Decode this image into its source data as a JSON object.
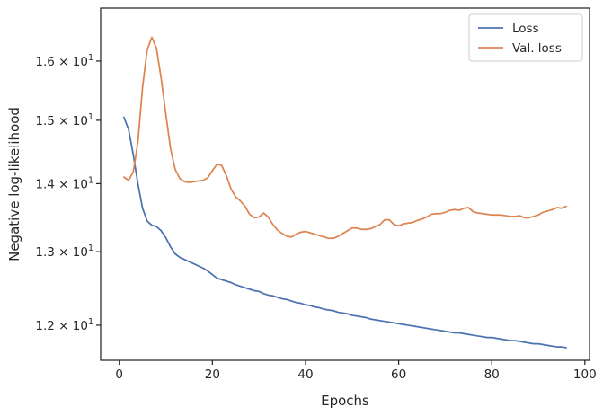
{
  "chart_data": {
    "type": "line",
    "xlabel": "Epochs",
    "ylabel": "Negative log-likelihood",
    "xlim": [
      -4,
      101
    ],
    "ylim": [
      11.55,
      16.95
    ],
    "yscale": "log",
    "grid": false,
    "legend_position": "top-right",
    "x_ticks": [
      0,
      20,
      40,
      60,
      80,
      100
    ],
    "x_tick_labels": [
      "0",
      "20",
      "40",
      "60",
      "80",
      "100"
    ],
    "y_ticks": [
      12,
      13,
      14,
      15,
      16
    ],
    "y_tick_labels": [
      {
        "mant": "1.2",
        "exp": "1"
      },
      {
        "mant": "1.3",
        "exp": "1"
      },
      {
        "mant": "1.4",
        "exp": "1"
      },
      {
        "mant": "1.5",
        "exp": "1"
      },
      {
        "mant": "1.6",
        "exp": "1"
      }
    ],
    "x_tick_mult": "10",
    "series": [
      {
        "name": "Loss",
        "color": "#4c72b0",
        "x": [
          1,
          2,
          3,
          4,
          5,
          6,
          7,
          8,
          9,
          10,
          11,
          12,
          13,
          14,
          15,
          16,
          17,
          18,
          19,
          20,
          21,
          22,
          23,
          24,
          25,
          26,
          27,
          28,
          29,
          30,
          31,
          32,
          33,
          34,
          35,
          36,
          37,
          38,
          39,
          40,
          41,
          42,
          43,
          44,
          45,
          46,
          47,
          48,
          49,
          50,
          51,
          52,
          53,
          54,
          55,
          56,
          57,
          58,
          59,
          60,
          61,
          62,
          63,
          64,
          65,
          66,
          67,
          68,
          69,
          70,
          71,
          72,
          73,
          74,
          75,
          76,
          77,
          78,
          79,
          80,
          81,
          82,
          83,
          84,
          85,
          86,
          87,
          88,
          89,
          90,
          91,
          92,
          93,
          94,
          95,
          96
        ],
        "values": [
          15.05,
          14.85,
          14.45,
          14.0,
          13.63,
          13.44,
          13.38,
          13.36,
          13.3,
          13.2,
          13.07,
          12.97,
          12.92,
          12.89,
          12.86,
          12.83,
          12.8,
          12.77,
          12.73,
          12.68,
          12.63,
          12.61,
          12.59,
          12.57,
          12.54,
          12.52,
          12.5,
          12.48,
          12.46,
          12.45,
          12.42,
          12.4,
          12.39,
          12.37,
          12.35,
          12.34,
          12.32,
          12.3,
          12.29,
          12.27,
          12.26,
          12.24,
          12.23,
          12.21,
          12.2,
          12.19,
          12.17,
          12.16,
          12.15,
          12.13,
          12.12,
          12.11,
          12.1,
          12.08,
          12.07,
          12.06,
          12.05,
          12.04,
          12.03,
          12.02,
          12.01,
          12.0,
          11.99,
          11.98,
          11.97,
          11.96,
          11.95,
          11.94,
          11.93,
          11.92,
          11.91,
          11.9,
          11.9,
          11.89,
          11.88,
          11.87,
          11.86,
          11.85,
          11.84,
          11.84,
          11.83,
          11.82,
          11.81,
          11.8,
          11.8,
          11.79,
          11.78,
          11.77,
          11.76,
          11.76,
          11.75,
          11.74,
          11.73,
          11.72,
          11.72,
          11.71
        ]
      },
      {
        "name": "Val. loss",
        "color": "#dd8452",
        "x": [
          1,
          2,
          3,
          4,
          5,
          6,
          7,
          8,
          9,
          10,
          11,
          12,
          13,
          14,
          15,
          16,
          17,
          18,
          19,
          20,
          21,
          22,
          23,
          24,
          25,
          26,
          27,
          28,
          29,
          30,
          31,
          32,
          33,
          34,
          35,
          36,
          37,
          38,
          39,
          40,
          41,
          42,
          43,
          44,
          45,
          46,
          47,
          48,
          49,
          50,
          51,
          52,
          53,
          54,
          55,
          56,
          57,
          58,
          59,
          60,
          61,
          62,
          63,
          64,
          65,
          66,
          67,
          68,
          69,
          70,
          71,
          72,
          73,
          74,
          75,
          76,
          77,
          78,
          79,
          80,
          81,
          82,
          83,
          84,
          85,
          86,
          87,
          88,
          89,
          90,
          91,
          92,
          93,
          94,
          95,
          96
        ],
        "values": [
          14.1,
          14.05,
          14.18,
          14.65,
          15.55,
          16.2,
          16.42,
          16.22,
          15.7,
          15.1,
          14.55,
          14.22,
          14.08,
          14.03,
          14.02,
          14.03,
          14.04,
          14.05,
          14.09,
          14.2,
          14.3,
          14.28,
          14.12,
          13.92,
          13.8,
          13.74,
          13.66,
          13.54,
          13.49,
          13.5,
          13.56,
          13.5,
          13.39,
          13.31,
          13.26,
          13.22,
          13.21,
          13.25,
          13.28,
          13.29,
          13.27,
          13.25,
          13.23,
          13.21,
          13.19,
          13.19,
          13.22,
          13.26,
          13.3,
          13.34,
          13.34,
          13.32,
          13.32,
          13.33,
          13.36,
          13.39,
          13.46,
          13.46,
          13.39,
          13.37,
          13.4,
          13.41,
          13.42,
          13.45,
          13.47,
          13.5,
          13.54,
          13.55,
          13.55,
          13.57,
          13.6,
          13.61,
          13.6,
          13.63,
          13.64,
          13.58,
          13.56,
          13.55,
          13.54,
          13.53,
          13.53,
          13.53,
          13.52,
          13.51,
          13.51,
          13.52,
          13.49,
          13.49,
          13.51,
          13.53,
          13.57,
          13.59,
          13.61,
          13.64,
          13.63,
          13.66
        ]
      }
    ]
  }
}
